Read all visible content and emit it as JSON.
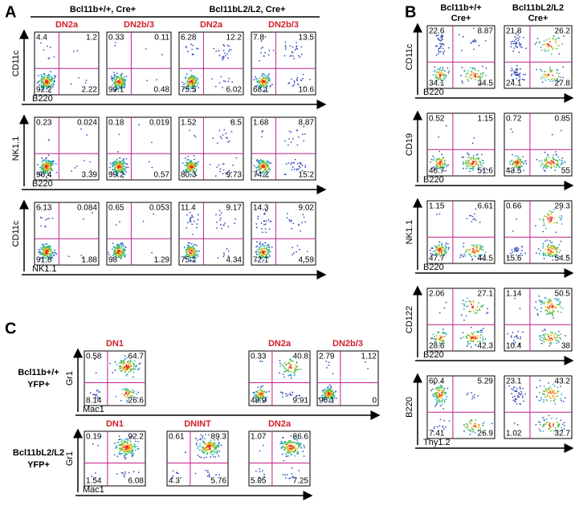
{
  "panel_a": {
    "label": "A",
    "headers": [
      {
        "text": "Bcl11b+/+, Cre+",
        "subsets": [
          "DN2a",
          "DN2b/3"
        ]
      },
      {
        "text": "Bcl11bL2/L2, Cre+",
        "subsets": [
          "DN2a",
          "DN2b/3"
        ]
      }
    ],
    "rows": [
      {
        "y_label": "CD11c",
        "x_label": "B220",
        "plots": [
          {
            "quadrants": [
              "4.4",
              "1.2",
              "92.2",
              "2.22"
            ]
          },
          {
            "quadrants": [
              "0.33",
              "0.11",
              "99.1",
              "0.48"
            ]
          },
          {
            "quadrants": [
              "6.28",
              "12.2",
              "75.5",
              "6.02"
            ]
          },
          {
            "quadrants": [
              "7.8",
              "13.5",
              "68.1",
              "10.6"
            ]
          }
        ]
      },
      {
        "y_label": "NK1.1",
        "x_label": "B220",
        "plots": [
          {
            "quadrants": [
              "0.23",
              "0.024",
              "96.4",
              "3.39"
            ]
          },
          {
            "quadrants": [
              "0.18",
              "0.019",
              "99.2",
              "0.57"
            ]
          },
          {
            "quadrants": [
              "1.52",
              "8.5",
              "80.3",
              "9.73"
            ]
          },
          {
            "quadrants": [
              "1.68",
              "8.87",
              "74.2",
              "15.2"
            ]
          }
        ]
      },
      {
        "y_label": "CD11c",
        "x_label": "NK1.1",
        "plots": [
          {
            "quadrants": [
              "6.13",
              "0.084",
              "91.8",
              "1.88"
            ]
          },
          {
            "quadrants": [
              "0.65",
              "0.053",
              "98",
              "1.29"
            ]
          },
          {
            "quadrants": [
              "11.4",
              "9.17",
              "75.1",
              "4.34"
            ]
          },
          {
            "quadrants": [
              "14.3",
              "9.02",
              "72.1",
              "4.59"
            ]
          }
        ]
      }
    ]
  },
  "panel_b": {
    "label": "B",
    "headers": [
      [
        "Bcl11b+/+",
        "Cre+"
      ],
      [
        "Bcl11bL2/L2",
        "Cre+"
      ]
    ],
    "rows": [
      {
        "y_label": "CD11c",
        "x_label": "B220",
        "plots": [
          {
            "quadrants": [
              "22.6",
              "8.87",
              "34.1",
              "34.5"
            ]
          },
          {
            "quadrants": [
              "21.8",
              "26.2",
              "24.1",
              "27.8"
            ]
          }
        ]
      },
      {
        "y_label": "CD19",
        "x_label": "B220",
        "plots": [
          {
            "quadrants": [
              "0.52",
              "1.15",
              "46.7",
              "51.6"
            ]
          },
          {
            "quadrants": [
              "0.72",
              "0.85",
              "43.5",
              "55"
            ]
          }
        ]
      },
      {
        "y_label": "NK1.1",
        "x_label": "B220",
        "plots": [
          {
            "quadrants": [
              "1.15",
              "6.61",
              "47.7",
              "44.5"
            ]
          },
          {
            "quadrants": [
              "0.66",
              "29.3",
              "15.6",
              "54.5"
            ]
          }
        ]
      },
      {
        "y_label": "CD122",
        "x_label": "B220",
        "plots": [
          {
            "quadrants": [
              "2.06",
              "27.1",
              "28.6",
              "42.3"
            ]
          },
          {
            "quadrants": [
              "1.14",
              "50.5",
              "10.4",
              "38"
            ]
          }
        ]
      },
      {
        "y_label": "B220",
        "x_label": "Thy1.2",
        "plots": [
          {
            "quadrants": [
              "60.4",
              "5.29",
              "7.41",
              "26.9"
            ]
          },
          {
            "quadrants": [
              "23.1",
              "43.2",
              "1.02",
              "32.7"
            ]
          }
        ]
      }
    ]
  },
  "panel_c": {
    "label": "C",
    "rows": [
      {
        "group": [
          "Bcl11b+/+",
          "YFP+"
        ],
        "y_label": "Gr1",
        "x_label": "Mac1",
        "plots": [
          {
            "title": "DN1",
            "quadrants": [
              "0.58",
              "64.7",
              "8.14",
              "26.6"
            ]
          },
          {
            "title": "DN2a",
            "quadrants": [
              "0.33",
              "40.8",
              "48.9",
              "9.91"
            ]
          },
          {
            "title": "DN2b/3",
            "quadrants": [
              "2.79",
              "1.12",
              "96.1",
              "0"
            ]
          }
        ]
      },
      {
        "group": [
          "Bcl11bL2/L2",
          "YFP+"
        ],
        "y_label": "Gr1",
        "x_label": "Mac1",
        "plots": [
          {
            "title": "DN1",
            "quadrants": [
              "0.19",
              "92.2",
              "1.54",
              "6.08"
            ]
          },
          {
            "title": "DNINT",
            "quadrants": [
              "0.61",
              "89.3",
              "4.3",
              "5.76"
            ]
          },
          {
            "title": "DN2a",
            "quadrants": [
              "1.07",
              "86.6",
              "5.05",
              "7.25"
            ]
          }
        ]
      }
    ]
  }
}
